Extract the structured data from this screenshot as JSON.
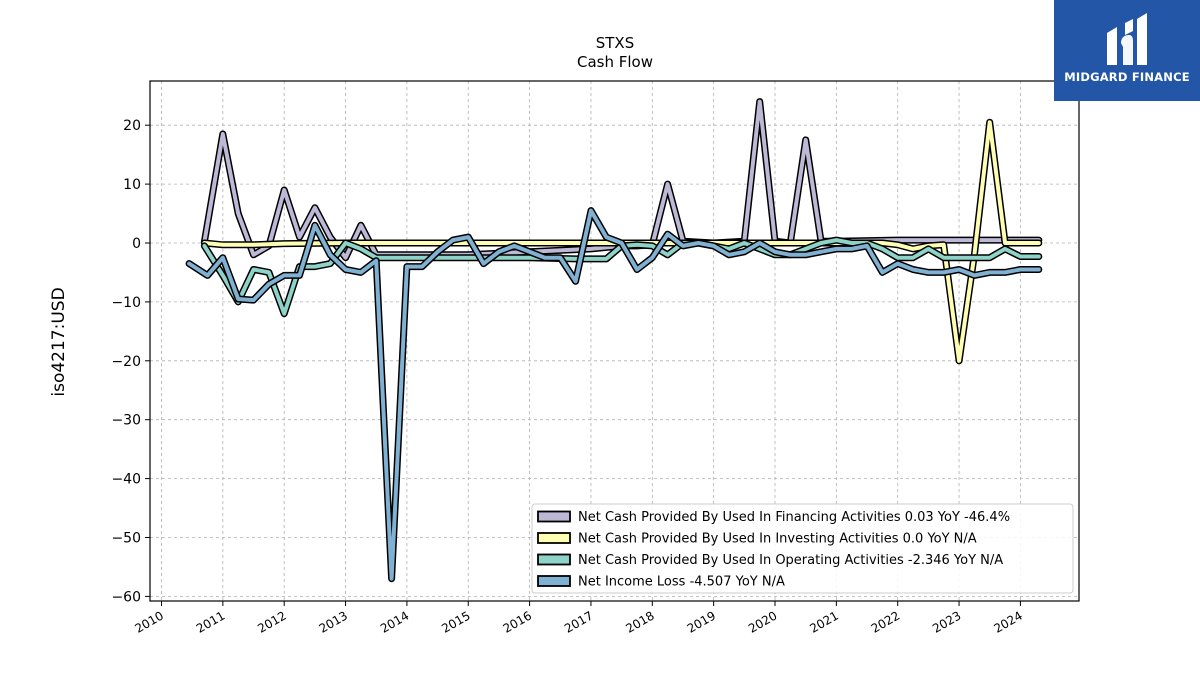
{
  "chart_data": {
    "type": "line",
    "title": "STXS",
    "subtitle": "Cash Flow",
    "ylabel": "iso4217:USD",
    "xlabel": "",
    "xlim": [
      2009.9,
      2024.95
    ],
    "ylim": [
      -61,
      27.5
    ],
    "x_ticks": [
      "2010",
      "2011",
      "2012",
      "2013",
      "2014",
      "2015",
      "2016",
      "2017",
      "2018",
      "2019",
      "2020",
      "2021",
      "2022",
      "2023",
      "2024"
    ],
    "y_ticks": [
      "20",
      "10",
      "0",
      "−10",
      "−20",
      "−30",
      "−40",
      "−50",
      "−60"
    ],
    "y_tick_values": [
      20,
      10,
      0,
      -10,
      -20,
      -30,
      -40,
      -50,
      -60
    ],
    "grid": true,
    "legend_position": "lower-right",
    "series": [
      {
        "name": "Net Cash Provided By Used In Financing Activities",
        "legend_label": "Net Cash Provided By Used In Financing Activities  0.03 YoY -46.4%",
        "color": "#bcb8d6",
        "points": [
          [
            2010.7,
            0.2
          ],
          [
            2011.0,
            18.5
          ],
          [
            2011.25,
            5.0
          ],
          [
            2011.5,
            -2.0
          ],
          [
            2011.75,
            -0.5
          ],
          [
            2012.0,
            9.0
          ],
          [
            2012.25,
            1.0
          ],
          [
            2012.5,
            6.0
          ],
          [
            2012.75,
            1.0
          ],
          [
            2013.0,
            -2.5
          ],
          [
            2013.25,
            3.0
          ],
          [
            2013.5,
            -2.0
          ],
          [
            2014.0,
            -2.0
          ],
          [
            2015.0,
            -2.0
          ],
          [
            2016.0,
            -1.5
          ],
          [
            2017.0,
            -1.0
          ],
          [
            2017.5,
            -0.5
          ],
          [
            2017.75,
            -0.5
          ],
          [
            2018.0,
            -0.3
          ],
          [
            2018.25,
            10.0
          ],
          [
            2018.5,
            0.3
          ],
          [
            2019.0,
            0.0
          ],
          [
            2019.5,
            0.3
          ],
          [
            2019.75,
            24.0
          ],
          [
            2020.0,
            0.3
          ],
          [
            2020.25,
            0.0
          ],
          [
            2020.5,
            17.5
          ],
          [
            2020.75,
            0.3
          ],
          [
            2021.0,
            0.3
          ],
          [
            2022.0,
            0.5
          ],
          [
            2023.0,
            0.5
          ],
          [
            2024.0,
            0.5
          ],
          [
            2024.3,
            0.5
          ]
        ]
      },
      {
        "name": "Net Cash Provided By Used In Investing Activities",
        "legend_label": "Net Cash Provided By Used In Investing Activities  0.0 YoY N/A",
        "color": "#ffffb3",
        "points": [
          [
            2010.7,
            0.0
          ],
          [
            2011.0,
            -0.3
          ],
          [
            2011.5,
            -0.3
          ],
          [
            2012.0,
            -0.1
          ],
          [
            2013.0,
            0.0
          ],
          [
            2014.0,
            0.0
          ],
          [
            2015.0,
            0.0
          ],
          [
            2016.0,
            0.0
          ],
          [
            2017.0,
            0.0
          ],
          [
            2018.0,
            0.0
          ],
          [
            2019.0,
            0.0
          ],
          [
            2020.0,
            0.0
          ],
          [
            2021.0,
            0.0
          ],
          [
            2021.75,
            0.0
          ],
          [
            2022.0,
            -0.3
          ],
          [
            2022.25,
            -1.0
          ],
          [
            2022.5,
            -0.5
          ],
          [
            2022.75,
            -0.3
          ],
          [
            2023.0,
            -20.0
          ],
          [
            2023.25,
            -2.0
          ],
          [
            2023.5,
            20.5
          ],
          [
            2023.75,
            0.0
          ],
          [
            2024.0,
            0.0
          ],
          [
            2024.3,
            0.0
          ]
        ]
      },
      {
        "name": "Net Cash Provided By Used In Operating Activities",
        "legend_label": "Net Cash Provided By Used In Operating Activities  -2.346 YoY N/A",
        "color": "#8dd3c7",
        "points": [
          [
            2010.7,
            -0.5
          ],
          [
            2011.0,
            -5.5
          ],
          [
            2011.25,
            -10.0
          ],
          [
            2011.5,
            -4.5
          ],
          [
            2011.75,
            -5.0
          ],
          [
            2012.0,
            -12.0
          ],
          [
            2012.25,
            -4.0
          ],
          [
            2012.5,
            -4.0
          ],
          [
            2012.75,
            -3.5
          ],
          [
            2013.0,
            0.0
          ],
          [
            2013.25,
            -1.0
          ],
          [
            2013.5,
            -2.5
          ],
          [
            2014.0,
            -2.5
          ],
          [
            2015.0,
            -2.5
          ],
          [
            2016.0,
            -2.5
          ],
          [
            2016.75,
            -2.7
          ],
          [
            2017.25,
            -2.7
          ],
          [
            2017.5,
            -0.5
          ],
          [
            2017.75,
            -0.3
          ],
          [
            2018.0,
            -0.5
          ],
          [
            2018.25,
            -2.0
          ],
          [
            2018.5,
            0.0
          ],
          [
            2018.75,
            0.0
          ],
          [
            2019.0,
            -0.5
          ],
          [
            2019.25,
            -1.0
          ],
          [
            2019.5,
            0.0
          ],
          [
            2019.75,
            -1.0
          ],
          [
            2020.0,
            -2.0
          ],
          [
            2020.25,
            -2.0
          ],
          [
            2020.5,
            -1.0
          ],
          [
            2020.75,
            0.0
          ],
          [
            2021.0,
            0.5
          ],
          [
            2021.25,
            0.0
          ],
          [
            2021.5,
            0.0
          ],
          [
            2021.75,
            -1.0
          ],
          [
            2022.0,
            -2.5
          ],
          [
            2022.25,
            -2.5
          ],
          [
            2022.5,
            -1.0
          ],
          [
            2022.75,
            -2.5
          ],
          [
            2023.0,
            -2.5
          ],
          [
            2023.25,
            -2.5
          ],
          [
            2023.5,
            -2.5
          ],
          [
            2023.75,
            -1.0
          ],
          [
            2024.0,
            -2.3
          ],
          [
            2024.3,
            -2.3
          ]
        ]
      },
      {
        "name": "Net Income Loss",
        "legend_label": "Net Income Loss  -4.507 YoY N/A",
        "color": "#80b1d3",
        "points": [
          [
            2010.45,
            -3.5
          ],
          [
            2010.75,
            -5.5
          ],
          [
            2011.0,
            -2.5
          ],
          [
            2011.25,
            -9.5
          ],
          [
            2011.5,
            -9.7
          ],
          [
            2011.75,
            -7.0
          ],
          [
            2012.0,
            -5.5
          ],
          [
            2012.25,
            -5.5
          ],
          [
            2012.5,
            3.0
          ],
          [
            2012.75,
            -2.0
          ],
          [
            2013.0,
            -4.5
          ],
          [
            2013.25,
            -5.0
          ],
          [
            2013.5,
            -3.0
          ],
          [
            2013.75,
            -57.0
          ],
          [
            2014.0,
            -4.0
          ],
          [
            2014.25,
            -4.0
          ],
          [
            2014.5,
            -1.5
          ],
          [
            2014.75,
            0.5
          ],
          [
            2015.0,
            1.0
          ],
          [
            2015.25,
            -3.5
          ],
          [
            2015.5,
            -1.5
          ],
          [
            2015.75,
            -0.5
          ],
          [
            2016.0,
            -1.5
          ],
          [
            2016.25,
            -2.5
          ],
          [
            2016.5,
            -2.5
          ],
          [
            2016.75,
            -6.5
          ],
          [
            2017.0,
            5.5
          ],
          [
            2017.25,
            1.0
          ],
          [
            2017.5,
            0.0
          ],
          [
            2017.75,
            -4.5
          ],
          [
            2018.0,
            -2.5
          ],
          [
            2018.25,
            1.5
          ],
          [
            2018.5,
            -0.5
          ],
          [
            2018.75,
            0.0
          ],
          [
            2019.0,
            -0.5
          ],
          [
            2019.25,
            -2.0
          ],
          [
            2019.5,
            -1.5
          ],
          [
            2019.75,
            0.0
          ],
          [
            2020.0,
            -1.5
          ],
          [
            2020.25,
            -2.0
          ],
          [
            2020.5,
            -2.0
          ],
          [
            2020.75,
            -1.5
          ],
          [
            2021.0,
            -1.0
          ],
          [
            2021.25,
            -1.0
          ],
          [
            2021.5,
            -0.5
          ],
          [
            2021.75,
            -5.0
          ],
          [
            2022.0,
            -3.5
          ],
          [
            2022.25,
            -4.5
          ],
          [
            2022.5,
            -5.0
          ],
          [
            2022.75,
            -5.0
          ],
          [
            2023.0,
            -4.5
          ],
          [
            2023.25,
            -5.5
          ],
          [
            2023.5,
            -5.0
          ],
          [
            2023.75,
            -5.0
          ],
          [
            2024.0,
            -4.5
          ],
          [
            2024.3,
            -4.5
          ]
        ]
      }
    ]
  },
  "logo": {
    "brand_text": "MIDGARD FINANCE",
    "background": "#2456a8",
    "icon": "midgard-monogram-icon"
  }
}
